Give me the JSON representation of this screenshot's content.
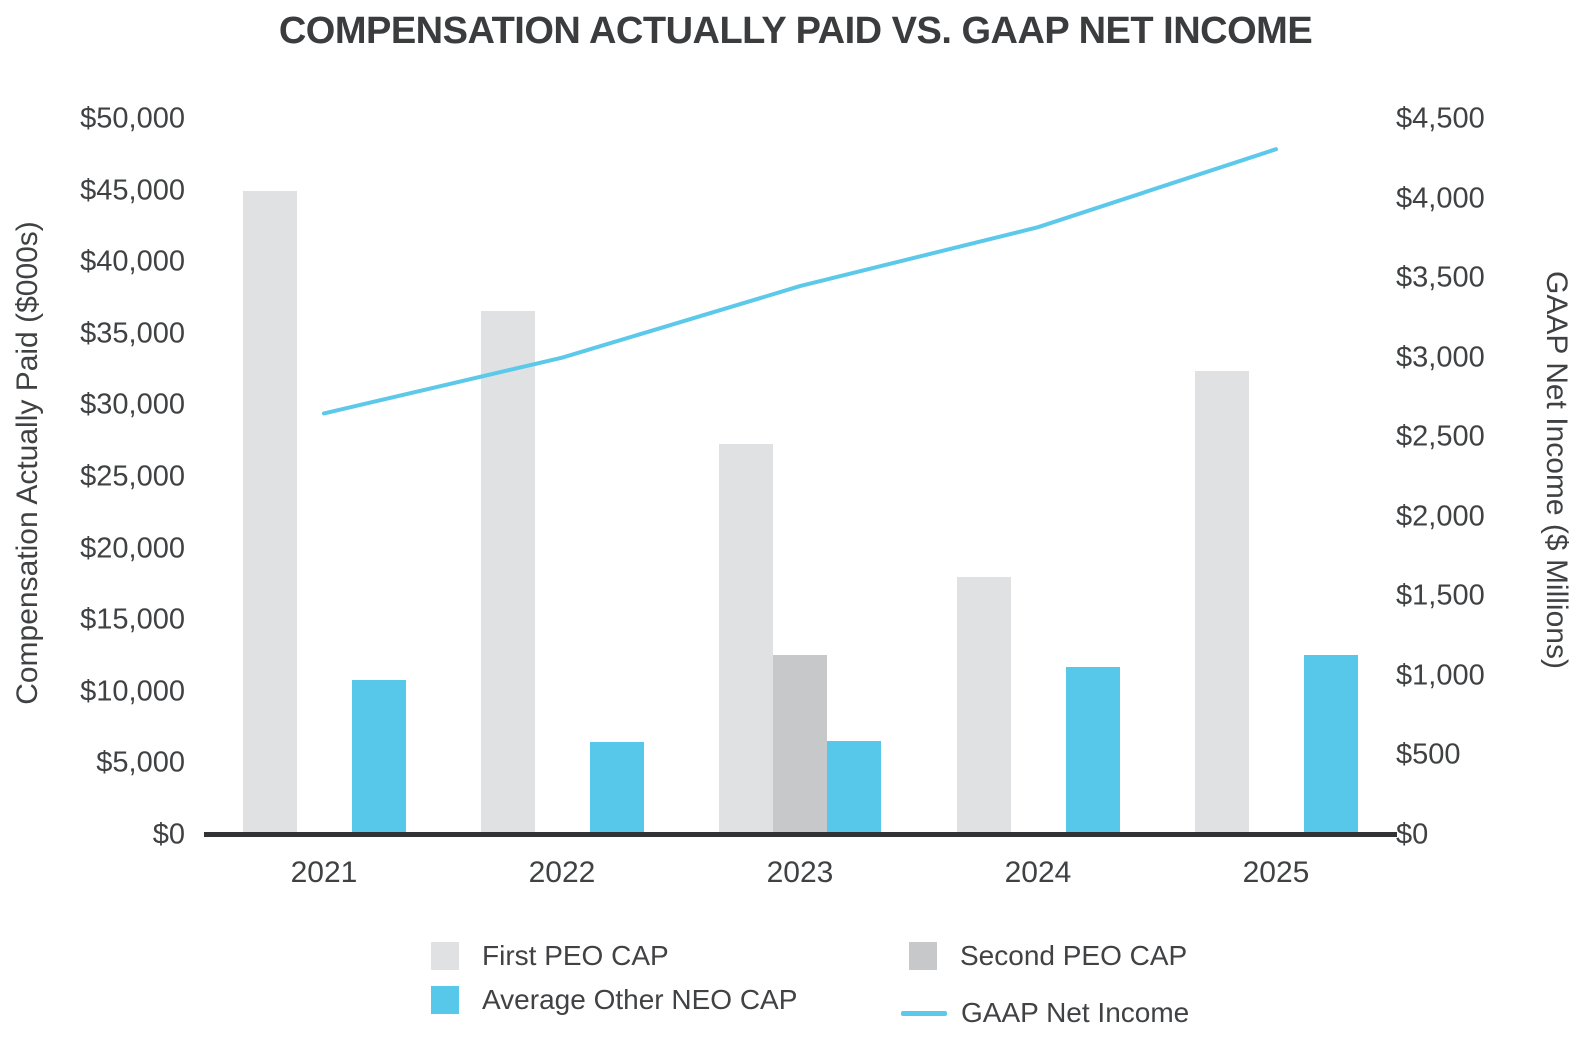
{
  "chart_data": {
    "type": "combo-bar-line",
    "title": "COMPENSATION ACTUALLY PAID VS. GAAP NET INCOME",
    "categories": [
      "2021",
      "2022",
      "2023",
      "2024",
      "2025"
    ],
    "bar_series": [
      {
        "name": "First PEO CAP",
        "axis": "left",
        "color": "#e0e1e3",
        "values": [
          45000,
          36600,
          27300,
          18000,
          32400
        ]
      },
      {
        "name": "Second PEO CAP",
        "axis": "left",
        "color": "#c6c8ca",
        "values": [
          null,
          null,
          12600,
          null,
          null
        ]
      },
      {
        "name": "Average Other NEO CAP",
        "axis": "left",
        "color": "#57c8e9",
        "values": [
          10800,
          6500,
          6600,
          11700,
          12600
        ]
      }
    ],
    "line_series": [
      {
        "name": "GAAP Net Income",
        "axis": "right",
        "color": "#5cc9ea",
        "values": [
          2650,
          3000,
          3450,
          3820,
          4310
        ]
      }
    ],
    "left_axis": {
      "label": "Compensation Actually Paid ($000s)",
      "min": 0,
      "max": 50000,
      "step": 5000,
      "tick_labels": [
        "$0",
        "$5,000",
        "$10,000",
        "$15,000",
        "$20,000",
        "$25,000",
        "$30,000",
        "$35,000",
        "$40,000",
        "$45,000",
        "$50,000"
      ]
    },
    "right_axis": {
      "label": "GAAP Net Income ($ Millions)",
      "min": 0,
      "max": 4500,
      "step": 500,
      "tick_labels": [
        "$0",
        "$500",
        "$1,000",
        "$1,500",
        "$2,000",
        "$2,500",
        "$3,000",
        "$3,500",
        "$4,000",
        "$4,500"
      ]
    },
    "legend": {
      "position": "bottom",
      "items": [
        {
          "label": "First PEO CAP",
          "marker": "square",
          "color": "#e0e1e3"
        },
        {
          "label": "Second PEO CAP",
          "marker": "square",
          "color": "#c6c8ca"
        },
        {
          "label": "Average Other NEO CAP",
          "marker": "square",
          "color": "#57c8e9"
        },
        {
          "label": "GAAP Net Income",
          "marker": "line",
          "color": "#5cc9ea"
        }
      ]
    },
    "grid": "off"
  }
}
